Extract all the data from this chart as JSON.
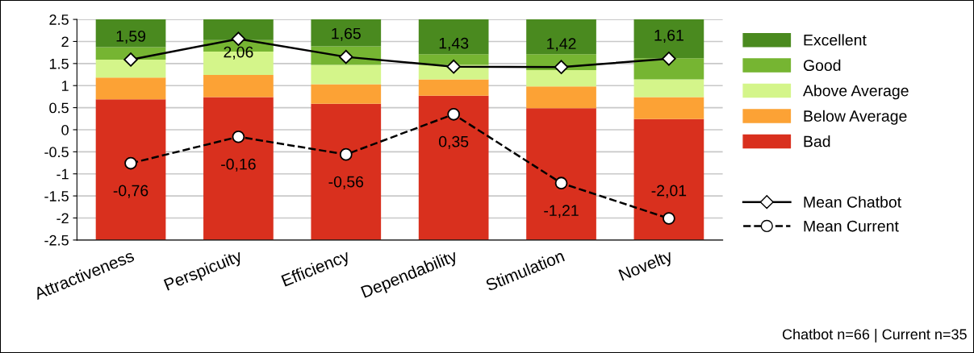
{
  "chart_data": {
    "type": "bar",
    "stacked": true,
    "categories": [
      "Attractiveness",
      "Perspicuity",
      "Efficiency",
      "Dependability",
      "Stimulation",
      "Novelty"
    ],
    "series": [
      {
        "color": "#d9301e",
        "values": [
          -2.5,
          -2.5,
          -2.5,
          -2.5,
          -2.5,
          -2.5
        ]
      },
      {
        "name": "Bad",
        "color": "#d9301e",
        "values": [
          0.69,
          0.74,
          0.59,
          0.77,
          0.49,
          0.24
        ]
      },
      {
        "name": "Below Average",
        "color": "#fca235",
        "values": [
          0.49,
          0.5,
          0.44,
          0.37,
          0.49,
          0.5
        ]
      },
      {
        "name": "Above Average",
        "color": "#d4f58a",
        "values": [
          0.41,
          0.53,
          0.44,
          0.33,
          0.37,
          0.4
        ]
      },
      {
        "name": "Good",
        "color": "#76b532",
        "values": [
          0.28,
          0.26,
          0.42,
          0.24,
          0.36,
          0.48
        ]
      },
      {
        "name": "Excellent",
        "color": "#4a8a1f",
        "values": [
          0.63,
          0.47,
          0.61,
          0.79,
          0.79,
          0.88
        ]
      },
      {
        "name": "Mean Chatbot",
        "type": "line",
        "color": "#000000",
        "marker": "diamond",
        "line_style": "solid",
        "data_labels": true,
        "value_labels": [
          "1,59",
          "2,06",
          "1,65",
          "1,43",
          "1,42",
          "1,61"
        ],
        "values": [
          1.59,
          2.06,
          1.65,
          1.43,
          1.42,
          1.61
        ]
      },
      {
        "name": "Mean Current",
        "type": "line",
        "color": "#000000",
        "marker": "circle",
        "line_style": "dashed",
        "data_labels": true,
        "value_labels": [
          "-0,76",
          "-0,16",
          "-0,56",
          "0,35",
          "-1,21",
          "-2,01"
        ],
        "values": [
          -0.76,
          -0.16,
          -0.56,
          0.35,
          -1.21,
          -2.01
        ]
      }
    ],
    "ylim": [
      -2.5,
      2.5
    ],
    "yticks": [
      {
        "value": -2.5,
        "label": "-2.5"
      },
      {
        "value": -2,
        "label": "-2"
      },
      {
        "value": -1.5,
        "label": "-1.5"
      },
      {
        "value": -1,
        "label": "-1"
      },
      {
        "value": -0.5,
        "label": "-0.5"
      },
      {
        "value": 0,
        "label": "0"
      },
      {
        "value": 0.5,
        "label": "0.5"
      },
      {
        "value": 1,
        "label": "1"
      },
      {
        "value": 1.5,
        "label": "1.5"
      },
      {
        "value": 2,
        "label": "2"
      },
      {
        "value": 2.5,
        "label": "2.5"
      }
    ],
    "grid": "y",
    "legend": "right",
    "annotations": [
      "Chatbot n=66 | Current n=35"
    ]
  }
}
